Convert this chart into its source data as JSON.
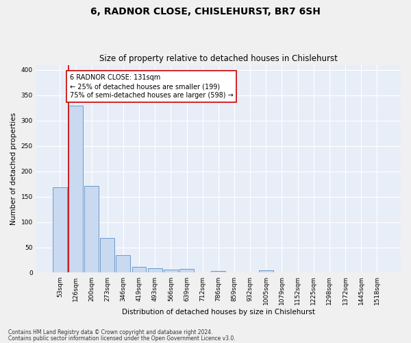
{
  "title": "6, RADNOR CLOSE, CHISLEHURST, BR7 6SH",
  "subtitle": "Size of property relative to detached houses in Chislehurst",
  "xlabel": "Distribution of detached houses by size in Chislehurst",
  "ylabel": "Number of detached properties",
  "bar_labels": [
    "53sqm",
    "126sqm",
    "200sqm",
    "273sqm",
    "346sqm",
    "419sqm",
    "493sqm",
    "566sqm",
    "639sqm",
    "712sqm",
    "786sqm",
    "859sqm",
    "932sqm",
    "1005sqm",
    "1079sqm",
    "1152sqm",
    "1225sqm",
    "1298sqm",
    "1372sqm",
    "1445sqm",
    "1518sqm"
  ],
  "bar_values": [
    168,
    329,
    171,
    68,
    34,
    11,
    9,
    6,
    8,
    0,
    3,
    0,
    0,
    5,
    0,
    0,
    0,
    0,
    0,
    0,
    0
  ],
  "bar_color": "#c9d9f0",
  "bar_edge_color": "#5b8ec4",
  "annotation_text": "6 RADNOR CLOSE: 131sqm\n← 25% of detached houses are smaller (199)\n75% of semi-detached houses are larger (598) →",
  "vline_x_idx": 1,
  "ylim": [
    0,
    410
  ],
  "yticks": [
    0,
    50,
    100,
    150,
    200,
    250,
    300,
    350,
    400
  ],
  "footer1": "Contains HM Land Registry data © Crown copyright and database right 2024.",
  "footer2": "Contains public sector information licensed under the Open Government Licence v3.0.",
  "background_color": "#e8eef8",
  "grid_color": "#ffffff",
  "vline_color": "#cc0000",
  "annotation_box_color": "#ffffff",
  "annotation_box_edge": "#cc0000",
  "title_fontsize": 10,
  "subtitle_fontsize": 8.5,
  "tick_fontsize": 6.5,
  "ylabel_fontsize": 7.5,
  "xlabel_fontsize": 7.5,
  "annotation_fontsize": 7,
  "footer_fontsize": 5.5
}
